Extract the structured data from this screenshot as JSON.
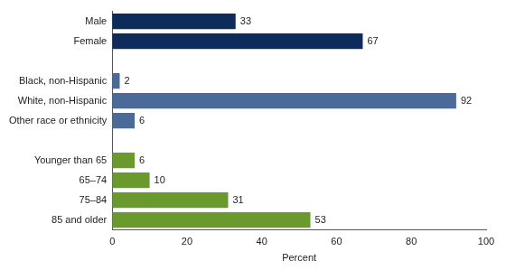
{
  "chart_data": {
    "type": "bar",
    "orientation": "horizontal",
    "categories": [
      "Male",
      "Female",
      null,
      "Black, non-Hispanic",
      "White, non-Hispanic",
      "Other race or ethnicity",
      null,
      "Younger than 65",
      "65–74",
      "75–84",
      "85 and older"
    ],
    "values": [
      33,
      67,
      null,
      2,
      92,
      6,
      null,
      6,
      10,
      31,
      53
    ],
    "colors": [
      "#0d2c5c",
      "#0d2c5c",
      null,
      "#4a6a9a",
      "#4a6a9a",
      "#4a6a9a",
      null,
      "#6a9a2e",
      "#6a9a2e",
      "#6a9a2e",
      "#6a9a2e"
    ],
    "xlabel": "Percent",
    "xlim": [
      0,
      100
    ],
    "xticks": [
      0,
      20,
      40,
      60,
      80,
      100
    ],
    "grid": false,
    "data_labels": true
  }
}
